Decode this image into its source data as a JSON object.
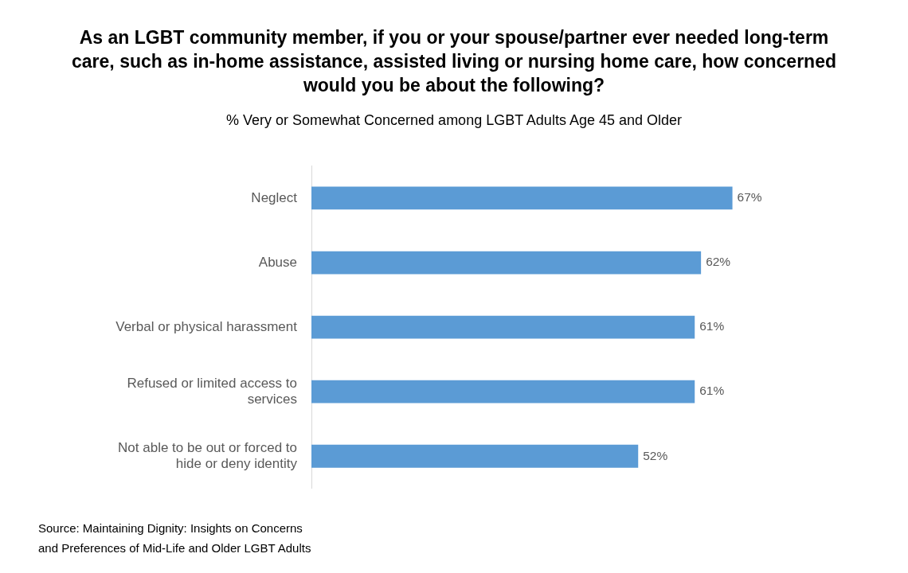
{
  "chart_data": {
    "type": "bar",
    "orientation": "horizontal",
    "title": "As an LGBT community member, if you or your spouse/partner ever needed long-term care, such as in-home assistance, assisted living or nursing home care, how concerned would you be about the following?",
    "subtitle": "% Very or Somewhat Concerned among LGBT Adults Age 45 and Older",
    "categories": [
      "Neglect",
      "Abuse",
      "Verbal or physical harassment",
      "Refused or limited access to services",
      "Not able to be out or forced to hide or deny identity"
    ],
    "values": [
      67,
      62,
      61,
      61,
      52
    ],
    "value_labels": [
      "67%",
      "62%",
      "61%",
      "61%",
      "52%"
    ],
    "color": "#5b9bd5",
    "tick_labels": "y",
    "annotations": [
      "Source: Maintaining Dignity: Insights on Concerns and Preferences of Mid-Life and Older LGBT Adults"
    ]
  }
}
